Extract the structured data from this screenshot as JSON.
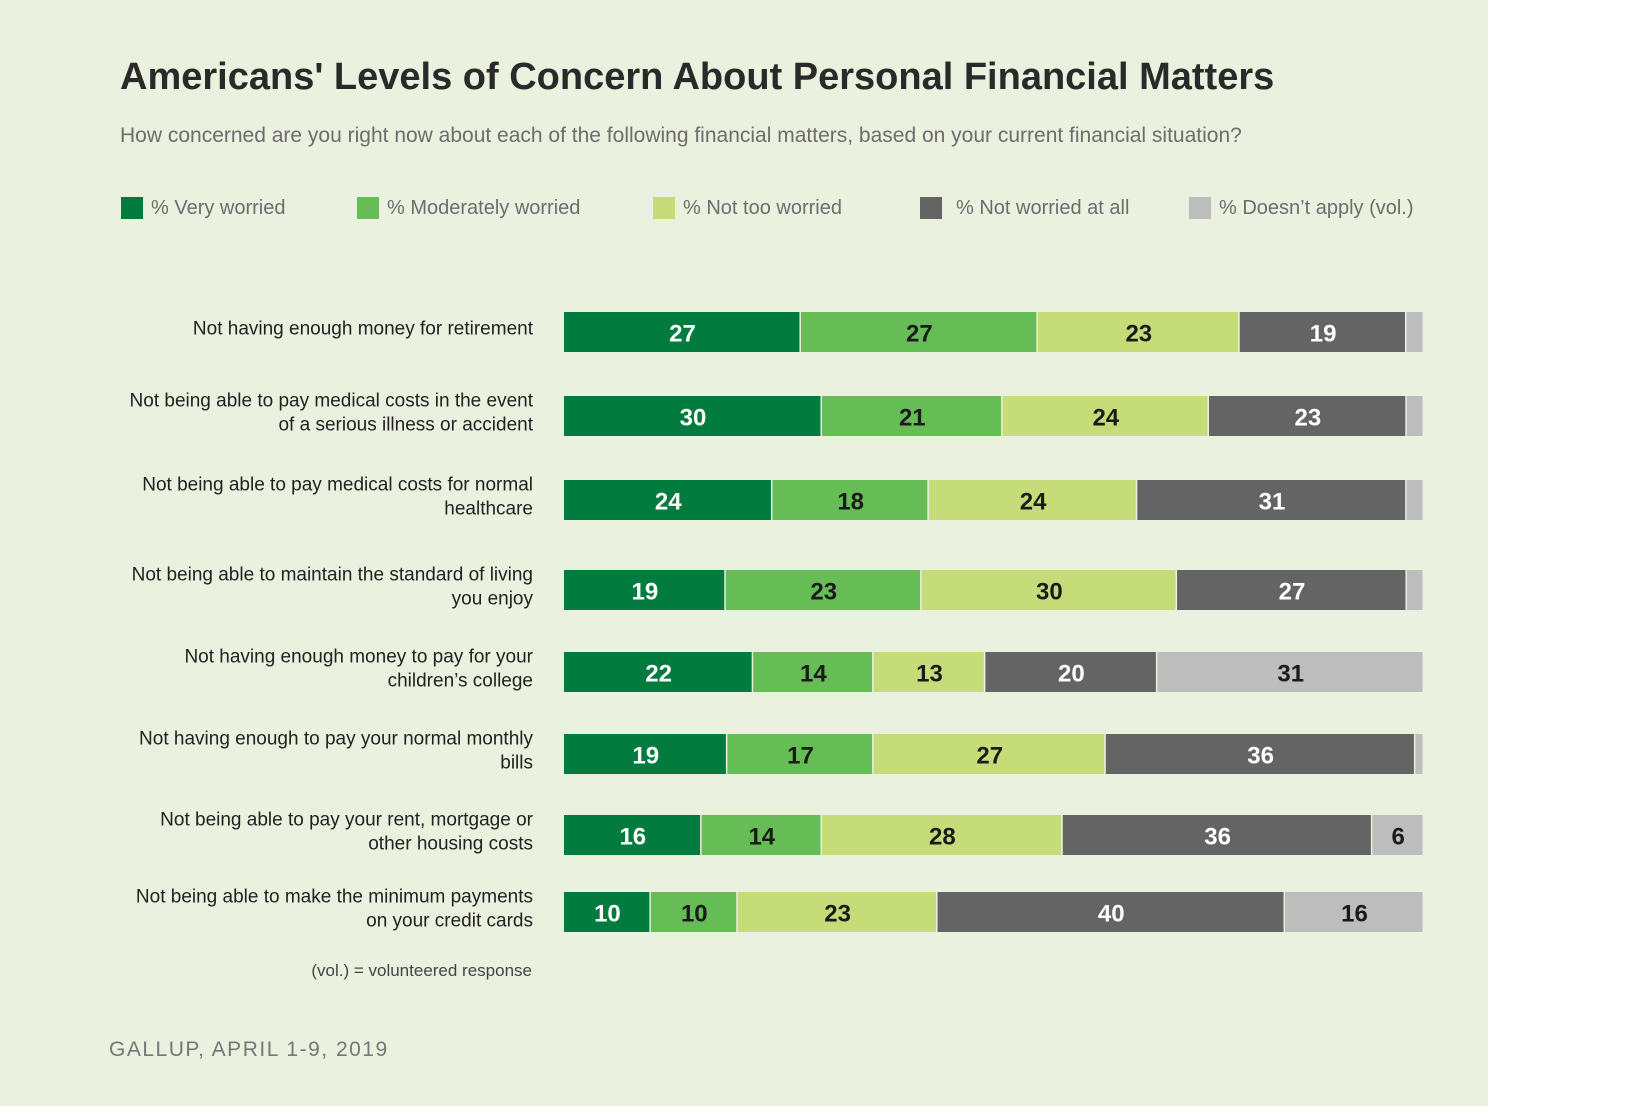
{
  "chart_data": {
    "type": "bar",
    "orientation": "horizontal",
    "stacked": true,
    "title": "Americans' Levels of Concern About Personal Financial Matters",
    "subtitle": "How concerned are you right now about each of the following financial matters, based on your current financial situation?",
    "xlim": [
      0,
      100
    ],
    "grid": false,
    "legend_position": "top",
    "categories": [
      [
        "Not having enough money for retirement"
      ],
      [
        "Not being able to pay medical costs in the event",
        "of a serious illness or accident"
      ],
      [
        "Not being able to pay medical costs for normal",
        "healthcare"
      ],
      [
        "Not being able to maintain the standard of living",
        "you enjoy"
      ],
      [
        "Not having enough money to pay for your",
        "children’s college"
      ],
      [
        "Not having enough to pay your normal monthly",
        "bills"
      ],
      [
        "Not being able to pay your rent, mortgage or",
        "other housing costs"
      ],
      [
        "Not being able to make the minimum payments",
        "on your credit cards"
      ]
    ],
    "series": [
      {
        "name": "% Very worried",
        "color": "#027c3e",
        "text_color": "#ffffff",
        "values": [
          27,
          30,
          24,
          19,
          22,
          19,
          16,
          10
        ]
      },
      {
        "name": "% Moderately worried",
        "color": "#66bc55",
        "text_color": "#1b1b1b",
        "values": [
          27,
          21,
          18,
          23,
          14,
          17,
          14,
          10
        ]
      },
      {
        "name": "% Not too worried",
        "color": "#c6dc79",
        "text_color": "#1b1b1b",
        "values": [
          23,
          24,
          24,
          30,
          13,
          27,
          28,
          23
        ]
      },
      {
        "name": "% Not worried at all",
        "color": "#646464",
        "text_color": "#ffffff",
        "values": [
          19,
          23,
          31,
          27,
          20,
          36,
          36,
          40
        ]
      },
      {
        "name": "% Doesn’t apply (vol.)",
        "color": "#bdbdbd",
        "text_color": "#1b1b1b",
        "values": [
          2,
          2,
          2,
          2,
          31,
          1,
          6,
          16
        ]
      }
    ],
    "data_labels_hidden_below": 5,
    "note": "(vol.) = volunteered response",
    "source": "GALLUP, APRIL 1-9, 2019"
  }
}
